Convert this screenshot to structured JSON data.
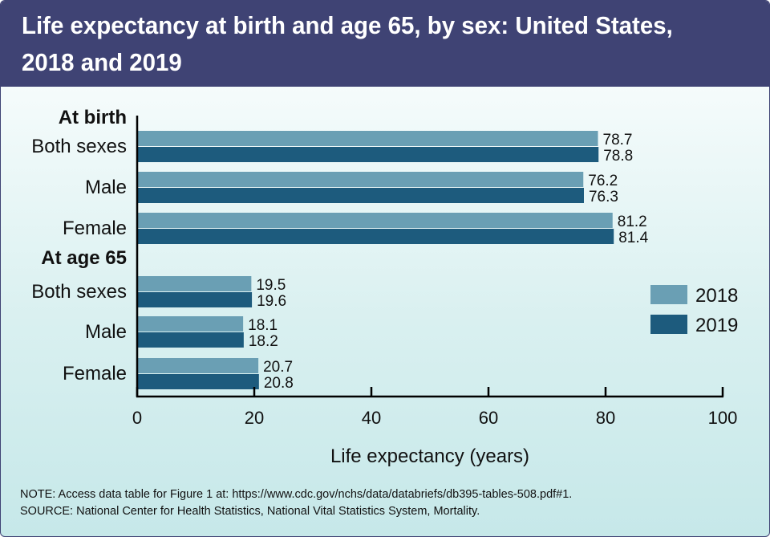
{
  "title": "Life expectancy at birth and age 65, by sex: United States, 2018 and 2019",
  "notes": {
    "note": "NOTE: Access data table for Figure 1 at: https://www.cdc.gov/nchs/data/databriefs/db395-tables-508.pdf#1.",
    "source": "SOURCE: National Center for Health Statistics, National Vital Statistics System, Mortality."
  },
  "colors": {
    "y2018": "#6a9fb4",
    "y2019": "#1d5b7d"
  },
  "chart_data": {
    "type": "bar",
    "orientation": "horizontal",
    "groups": [
      {
        "label": "At birth",
        "categories": [
          "Both sexes",
          "Male",
          "Female"
        ]
      },
      {
        "label": "At age 65",
        "categories": [
          "Both sexes",
          "Male",
          "Female"
        ]
      }
    ],
    "series": [
      {
        "name": "2018",
        "values": [
          78.7,
          76.2,
          81.2,
          19.5,
          18.1,
          20.7
        ]
      },
      {
        "name": "2019",
        "values": [
          78.8,
          76.3,
          81.4,
          19.6,
          18.2,
          20.8
        ]
      }
    ],
    "xlabel": "Life expectancy (years)",
    "xlim": [
      0,
      100
    ],
    "xticks": [
      "0",
      "20",
      "40",
      "60",
      "80",
      "100"
    ],
    "legend_position": "right",
    "grid": false
  }
}
